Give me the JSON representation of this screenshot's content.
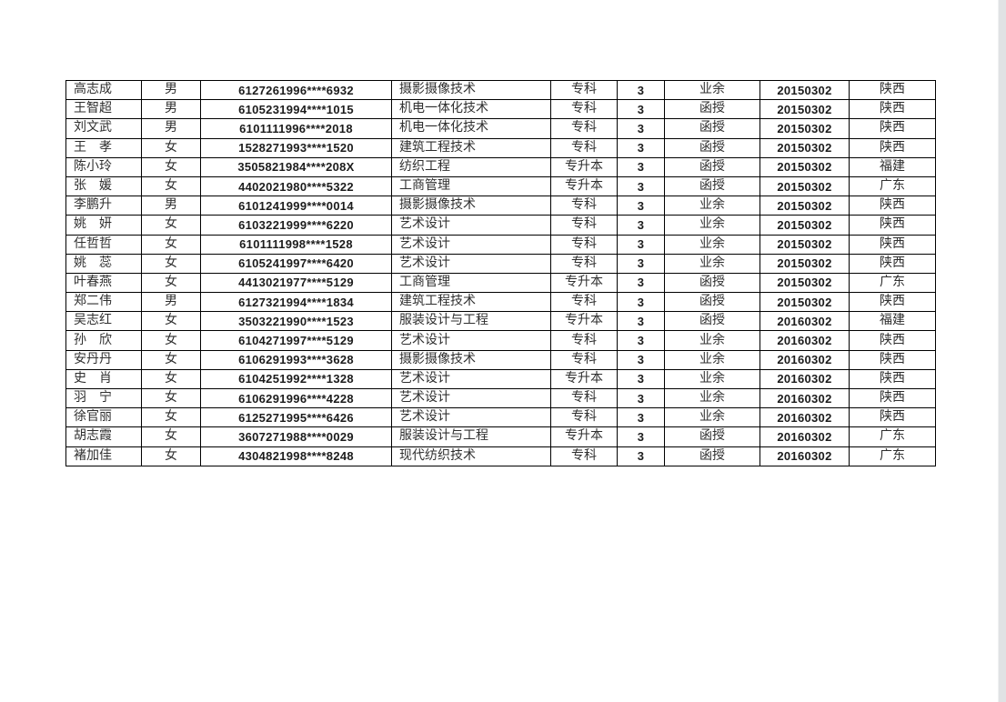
{
  "page": {
    "background": "#ffffff",
    "border_color": "#000000",
    "text_color": "#2f2f2f",
    "scrollbar_color": "#e0e2e4"
  },
  "table": {
    "rows": [
      [
        "高志成",
        "男",
        "6127261996****6932",
        "摄影摄像技术",
        "专科",
        "3",
        "业余",
        "20150302",
        "陕西"
      ],
      [
        "王智超",
        "男",
        "6105231994****1015",
        "机电一体化技术",
        "专科",
        "3",
        "函授",
        "20150302",
        "陕西"
      ],
      [
        "刘文武",
        "男",
        "6101111996****2018",
        "机电一体化技术",
        "专科",
        "3",
        "函授",
        "20150302",
        "陕西"
      ],
      [
        "王　孝",
        "女",
        "1528271993****1520",
        "建筑工程技术",
        "专科",
        "3",
        "函授",
        "20150302",
        "陕西"
      ],
      [
        "陈小玲",
        "女",
        "3505821984****208X",
        "纺织工程",
        "专升本",
        "3",
        "函授",
        "20150302",
        "福建"
      ],
      [
        "张　媛",
        "女",
        "4402021980****5322",
        "工商管理",
        "专升本",
        "3",
        "函授",
        "20150302",
        "广东"
      ],
      [
        "李鹏升",
        "男",
        "6101241999****0014",
        "摄影摄像技术",
        "专科",
        "3",
        "业余",
        "20150302",
        "陕西"
      ],
      [
        "姚　妍",
        "女",
        "6103221999****6220",
        "艺术设计",
        "专科",
        "3",
        "业余",
        "20150302",
        "陕西"
      ],
      [
        "任哲哲",
        "女",
        "6101111998****1528",
        "艺术设计",
        "专科",
        "3",
        "业余",
        "20150302",
        "陕西"
      ],
      [
        "姚　蕊",
        "女",
        "6105241997****6420",
        "艺术设计",
        "专科",
        "3",
        "业余",
        "20150302",
        "陕西"
      ],
      [
        "叶春燕",
        "女",
        "4413021977****5129",
        "工商管理",
        "专升本",
        "3",
        "函授",
        "20150302",
        "广东"
      ],
      [
        "郑二伟",
        "男",
        "6127321994****1834",
        "建筑工程技术",
        "专科",
        "3",
        "函授",
        "20150302",
        "陕西"
      ],
      [
        "吴志红",
        "女",
        "3503221990****1523",
        "服装设计与工程",
        "专升本",
        "3",
        "函授",
        "20160302",
        "福建"
      ],
      [
        "孙　欣",
        "女",
        "6104271997****5129",
        "艺术设计",
        "专科",
        "3",
        "业余",
        "20160302",
        "陕西"
      ],
      [
        "安丹丹",
        "女",
        "6106291993****3628",
        "摄影摄像技术",
        "专科",
        "3",
        "业余",
        "20160302",
        "陕西"
      ],
      [
        "史　肖",
        "女",
        "6104251992****1328",
        "艺术设计",
        "专升本",
        "3",
        "业余",
        "20160302",
        "陕西"
      ],
      [
        "羽　宁",
        "女",
        "6106291996****4228",
        "艺术设计",
        "专科",
        "3",
        "业余",
        "20160302",
        "陕西"
      ],
      [
        "徐官丽",
        "女",
        "6125271995****6426",
        "艺术设计",
        "专科",
        "3",
        "业余",
        "20160302",
        "陕西"
      ],
      [
        "胡志霞",
        "女",
        "3607271988****0029",
        "服装设计与工程",
        "专升本",
        "3",
        "函授",
        "20160302",
        "广东"
      ],
      [
        "褚加佳",
        "女",
        "4304821998****8248",
        "现代纺织技术",
        "专科",
        "3",
        "函授",
        "20160302",
        "广东"
      ]
    ]
  }
}
